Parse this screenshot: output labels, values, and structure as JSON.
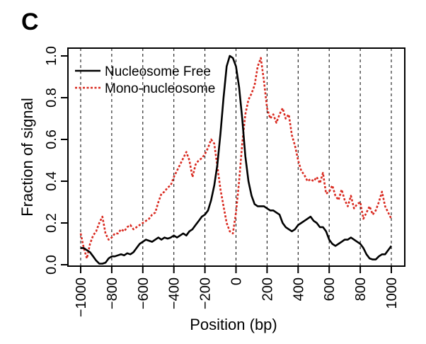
{
  "panel_label": "C",
  "chart_data": {
    "type": "line",
    "xlabel": "Position (bp)",
    "ylabel": "Fraction of signal",
    "xlim": [
      -1000,
      1000
    ],
    "ylim": [
      0,
      1
    ],
    "x_ticks": [
      -1000,
      -800,
      -600,
      -400,
      -200,
      0,
      200,
      400,
      600,
      800,
      1000
    ],
    "x_tick_labels": [
      "−1000",
      "−800",
      "−600",
      "−400",
      "−200",
      "0",
      "200",
      "400",
      "600",
      "800",
      "1000"
    ],
    "y_ticks": [
      0,
      0.2,
      0.4,
      0.6,
      0.8,
      1.0
    ],
    "y_tick_labels": [
      "0.0",
      "0.2",
      "0.4",
      "0.6",
      "0.8",
      "1.0"
    ],
    "grid": "vertical dashed at x ticks",
    "legend_position": "top-left",
    "series": [
      {
        "name": "Nucleosome Free",
        "color": "#000000",
        "style": "solid",
        "x": [
          -1000,
          -980,
          -960,
          -940,
          -920,
          -900,
          -880,
          -860,
          -840,
          -820,
          -800,
          -780,
          -760,
          -740,
          -720,
          -700,
          -680,
          -660,
          -640,
          -620,
          -600,
          -580,
          -560,
          -540,
          -520,
          -500,
          -480,
          -460,
          -440,
          -420,
          -400,
          -380,
          -360,
          -340,
          -320,
          -300,
          -280,
          -260,
          -240,
          -220,
          -200,
          -180,
          -160,
          -140,
          -120,
          -100,
          -80,
          -60,
          -40,
          -20,
          0,
          20,
          40,
          60,
          80,
          100,
          120,
          140,
          160,
          180,
          200,
          220,
          240,
          260,
          280,
          300,
          320,
          340,
          360,
          380,
          400,
          420,
          440,
          460,
          480,
          500,
          520,
          540,
          560,
          580,
          600,
          620,
          640,
          660,
          680,
          700,
          720,
          740,
          760,
          780,
          800,
          820,
          840,
          860,
          880,
          900,
          920,
          940,
          960,
          980,
          1000
        ],
        "values": [
          0.08,
          0.08,
          0.07,
          0.06,
          0.04,
          0.02,
          0.005,
          0.005,
          0.01,
          0.03,
          0.04,
          0.04,
          0.045,
          0.05,
          0.045,
          0.055,
          0.05,
          0.06,
          0.08,
          0.1,
          0.11,
          0.12,
          0.115,
          0.11,
          0.12,
          0.13,
          0.12,
          0.13,
          0.125,
          0.13,
          0.14,
          0.13,
          0.14,
          0.15,
          0.14,
          0.16,
          0.17,
          0.19,
          0.21,
          0.23,
          0.24,
          0.26,
          0.31,
          0.38,
          0.48,
          0.63,
          0.8,
          0.95,
          1.0,
          0.99,
          0.95,
          0.85,
          0.7,
          0.52,
          0.4,
          0.33,
          0.29,
          0.28,
          0.28,
          0.28,
          0.27,
          0.26,
          0.26,
          0.25,
          0.24,
          0.2,
          0.18,
          0.17,
          0.16,
          0.17,
          0.19,
          0.2,
          0.21,
          0.22,
          0.23,
          0.21,
          0.2,
          0.18,
          0.18,
          0.16,
          0.12,
          0.1,
          0.09,
          0.1,
          0.11,
          0.12,
          0.12,
          0.13,
          0.12,
          0.11,
          0.1,
          0.08,
          0.05,
          0.03,
          0.025,
          0.025,
          0.04,
          0.05,
          0.05,
          0.07,
          0.09
        ]
      },
      {
        "name": "Mono-nucleosome",
        "color": "#d9291f",
        "style": "dotted",
        "x": [
          -1000,
          -980,
          -960,
          -940,
          -920,
          -900,
          -880,
          -860,
          -840,
          -820,
          -800,
          -780,
          -760,
          -740,
          -720,
          -700,
          -680,
          -660,
          -640,
          -620,
          -600,
          -580,
          -560,
          -540,
          -520,
          -500,
          -480,
          -460,
          -440,
          -420,
          -400,
          -380,
          -360,
          -340,
          -320,
          -300,
          -280,
          -260,
          -240,
          -220,
          -200,
          -180,
          -160,
          -140,
          -120,
          -100,
          -80,
          -60,
          -40,
          -20,
          0,
          20,
          40,
          60,
          80,
          100,
          120,
          140,
          160,
          180,
          200,
          220,
          240,
          260,
          280,
          300,
          320,
          340,
          360,
          380,
          400,
          420,
          440,
          460,
          480,
          500,
          520,
          540,
          560,
          580,
          600,
          620,
          640,
          660,
          680,
          700,
          720,
          740,
          760,
          780,
          800,
          820,
          840,
          860,
          880,
          900,
          920,
          940,
          960,
          980,
          1000
        ],
        "values": [
          0.15,
          0.08,
          0.03,
          0.1,
          0.14,
          0.16,
          0.2,
          0.23,
          0.15,
          0.12,
          0.13,
          0.15,
          0.15,
          0.17,
          0.16,
          0.18,
          0.19,
          0.17,
          0.18,
          0.19,
          0.2,
          0.21,
          0.22,
          0.24,
          0.25,
          0.3,
          0.34,
          0.35,
          0.37,
          0.38,
          0.42,
          0.45,
          0.48,
          0.51,
          0.54,
          0.5,
          0.42,
          0.48,
          0.5,
          0.51,
          0.53,
          0.56,
          0.6,
          0.58,
          0.47,
          0.36,
          0.28,
          0.2,
          0.16,
          0.15,
          0.25,
          0.4,
          0.58,
          0.72,
          0.79,
          0.82,
          0.86,
          0.95,
          0.99,
          0.88,
          0.75,
          0.7,
          0.72,
          0.68,
          0.72,
          0.75,
          0.7,
          0.72,
          0.62,
          0.57,
          0.5,
          0.45,
          0.43,
          0.4,
          0.41,
          0.4,
          0.42,
          0.39,
          0.44,
          0.34,
          0.35,
          0.38,
          0.33,
          0.31,
          0.36,
          0.31,
          0.28,
          0.33,
          0.27,
          0.29,
          0.3,
          0.22,
          0.25,
          0.28,
          0.24,
          0.26,
          0.3,
          0.35,
          0.28,
          0.25,
          0.22
        ]
      }
    ]
  }
}
